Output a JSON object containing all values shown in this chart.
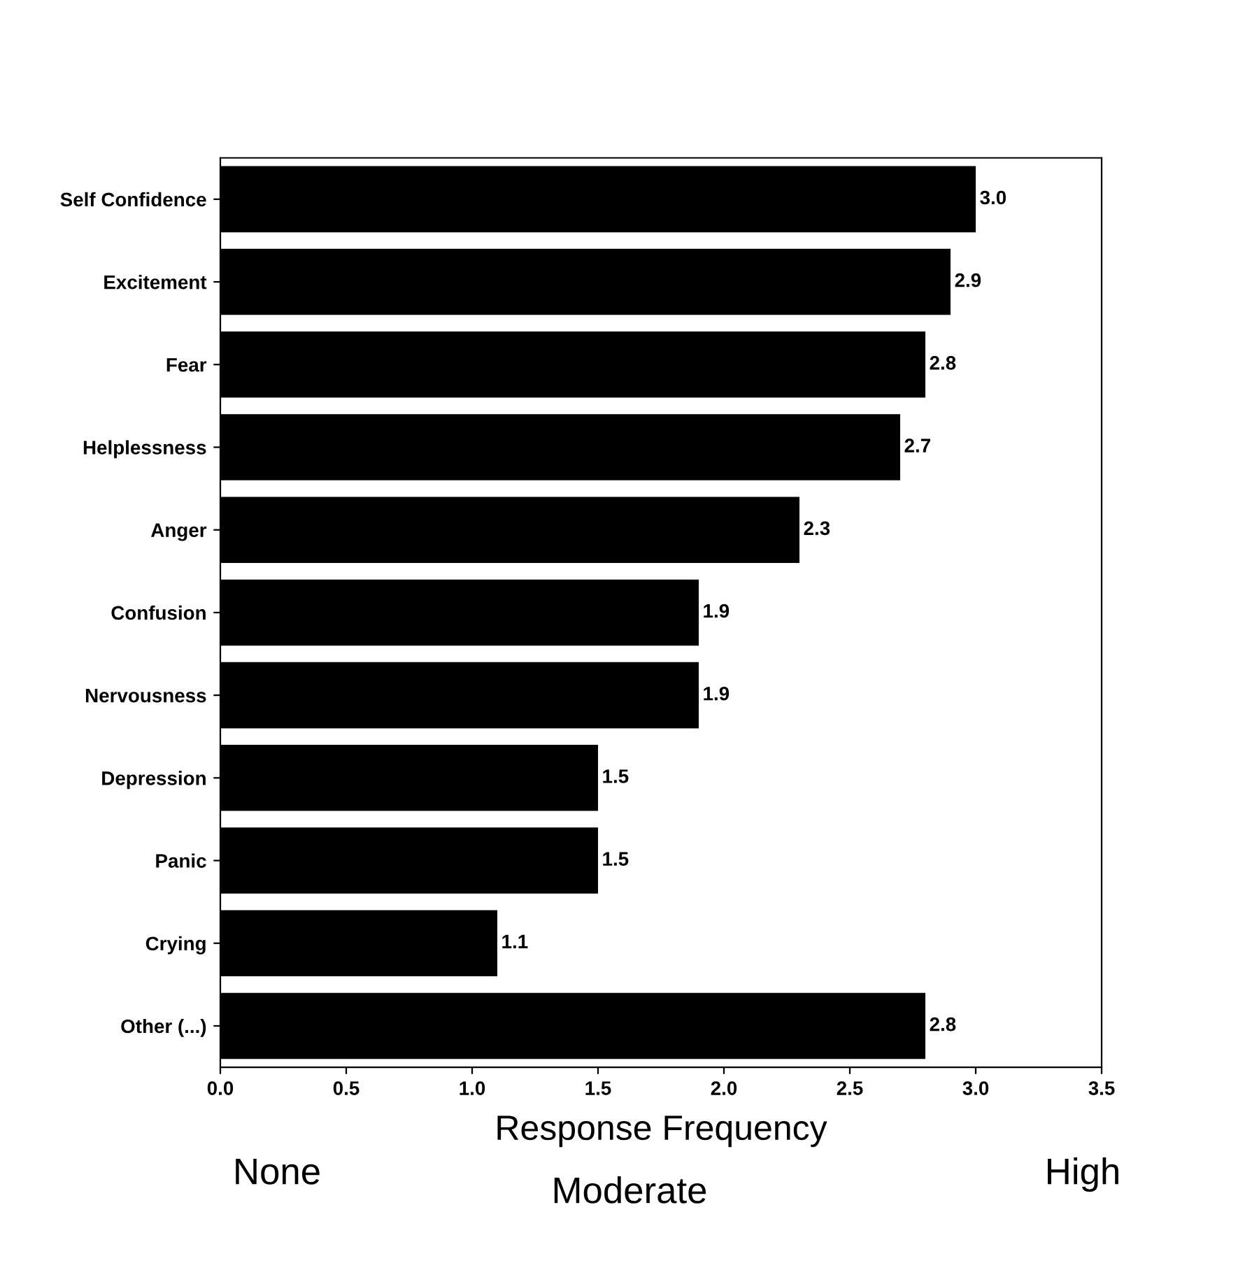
{
  "chart_data": {
    "type": "bar",
    "orientation": "horizontal",
    "categories": [
      "Self Confidence",
      "Excitement",
      "Fear",
      "Helplessness",
      "Anger",
      "Confusion",
      "Nervousness",
      "Depression",
      "Panic",
      "Crying",
      "Other (...)"
    ],
    "values": [
      3.0,
      2.9,
      2.8,
      2.7,
      2.3,
      1.9,
      1.9,
      1.5,
      1.5,
      1.1,
      2.8
    ],
    "color": "#000000",
    "xlabel": "Response Frequency",
    "xlim": [
      0,
      3.5
    ],
    "xticks": [
      {
        "value": 0,
        "label": "0.0"
      },
      {
        "value": 0.5,
        "label": "0.5"
      },
      {
        "value": 1,
        "label": "1.0"
      },
      {
        "value": 1.5,
        "label": "1.5"
      },
      {
        "value": 2,
        "label": "2.0"
      },
      {
        "value": 2.5,
        "label": "2.5"
      },
      {
        "value": 3,
        "label": "3.0"
      },
      {
        "value": 3.5,
        "label": "3.5"
      }
    ],
    "value_labels": [
      "3.0",
      "2.9",
      "2.8",
      "2.7",
      "2.3",
      "1.9",
      "1.9",
      "1.5",
      "1.5",
      "1.1",
      "2.8"
    ],
    "annotations": [
      "None",
      "Moderate",
      "High"
    ],
    "grid": false,
    "legend": false
  }
}
